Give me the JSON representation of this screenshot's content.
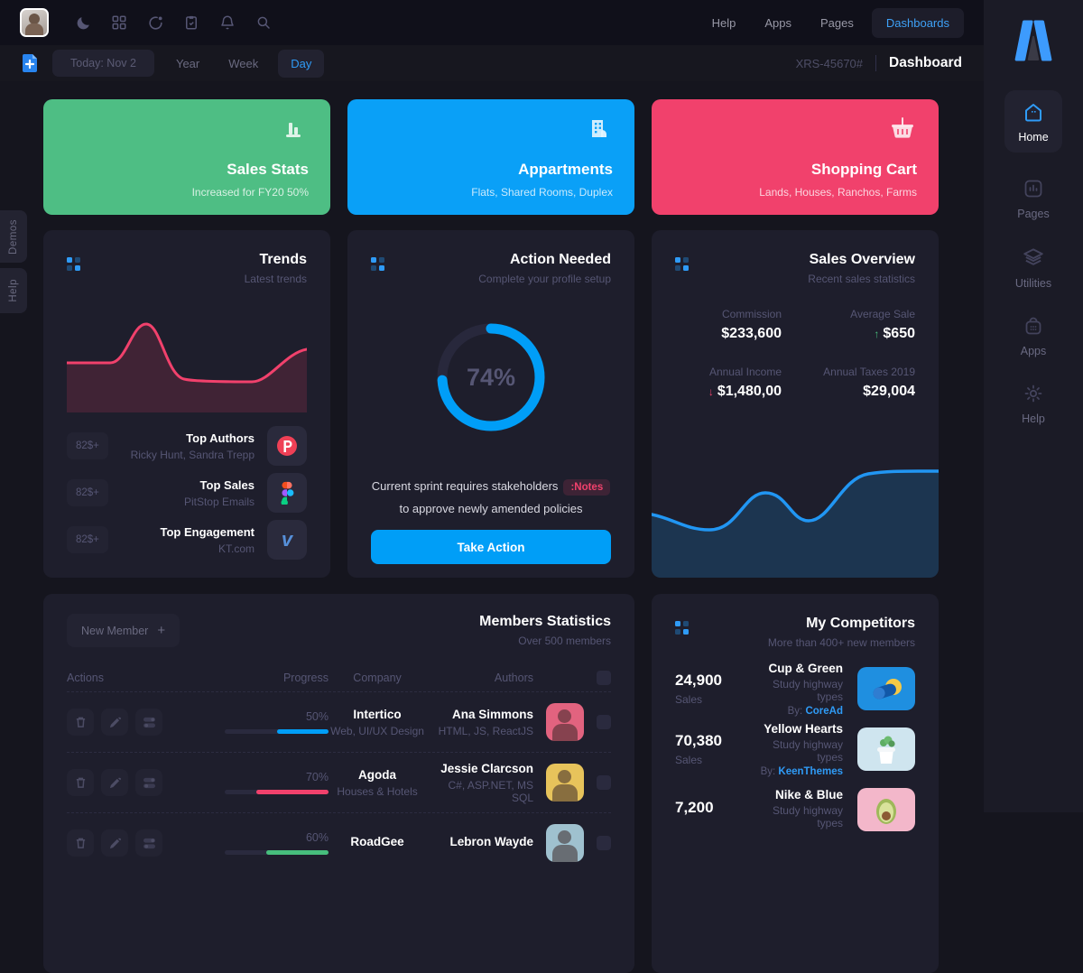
{
  "topbar": {
    "nav": {
      "help": "Help",
      "apps": "Apps",
      "pages": "Pages",
      "dashboards": "Dashboards"
    },
    "icons": [
      "moon-icon",
      "grid-icon",
      "donut-icon",
      "clipboard-icon",
      "bell-icon",
      "search-icon"
    ]
  },
  "toolbar": {
    "today": "Today: Nov 2",
    "year": "Year",
    "week": "Week",
    "day": "Day",
    "ref": "XRS-45670#",
    "title": "Dashboard"
  },
  "side_tabs": {
    "demos": "Demos",
    "help": "Help"
  },
  "stat_cards": [
    {
      "title": "Sales Stats",
      "subtitle": "Increased for FY20 50%",
      "color": "#4ebe84",
      "icon": "bar-chart-icon"
    },
    {
      "title": "Appartments",
      "subtitle": "Flats, Shared Rooms, Duplex",
      "color": "#0aa0f7",
      "icon": "building-icon"
    },
    {
      "title": "Shopping Cart",
      "subtitle": "Lands, Houses, Ranchos, Farms",
      "color": "#f1416c",
      "icon": "basket-icon"
    }
  ],
  "trends": {
    "title": "Trends",
    "subtitle": "Latest trends",
    "accent": "#f1416c",
    "items": [
      {
        "badge": "82$+",
        "title": "Top Authors",
        "subtitle": "Ricky Hunt, Sandra Trepp",
        "icon": "producthunt-icon"
      },
      {
        "badge": "82$+",
        "title": "Top Sales",
        "subtitle": "PitStop Emails",
        "icon": "figma-icon"
      },
      {
        "badge": "82$+",
        "title": "Top Engagement",
        "subtitle": "KT.com",
        "icon": "vimeo-icon"
      }
    ]
  },
  "action_needed": {
    "title": "Action Needed",
    "subtitle": "Complete your profile setup",
    "percent_label": "74%",
    "percent_value": 74,
    "note_line1": "Current sprint requires stakeholders",
    "note_badge": ":Notes",
    "note_line2": "to approve newly amended policies",
    "button": "Take Action",
    "accent": "#009ef7"
  },
  "sales_overview": {
    "title": "Sales Overview",
    "subtitle": "Recent sales statistics",
    "stats": [
      {
        "label": "Commission",
        "value": "$233,600",
        "trend": ""
      },
      {
        "label": "Average Sale",
        "value": "$650",
        "trend": "up"
      },
      {
        "label": "Annual Income",
        "value": "$1,480,00",
        "trend": "down"
      },
      {
        "label": "Annual Taxes 2019",
        "value": "$29,004",
        "trend": ""
      }
    ]
  },
  "members": {
    "title": "Members Statistics",
    "subtitle": "Over 500 members",
    "new_member": "New Member",
    "columns": {
      "actions": "Actions",
      "progress": "Progress",
      "company": "Company",
      "authors": "Authors"
    },
    "rows": [
      {
        "percent": "50%",
        "color": "#009ef7",
        "company": "Intertico",
        "company_sub": "Web, UI/UX Design",
        "author": "Ana Simmons",
        "author_sub": "HTML, JS, ReactJS",
        "avatar_color": "#e2637f"
      },
      {
        "percent": "70%",
        "color": "#f1416c",
        "company": "Agoda",
        "company_sub": "Houses & Hotels",
        "author": "Jessie Clarcson",
        "author_sub": "C#, ASP.NET, MS SQL",
        "avatar_color": "#e7c35b"
      },
      {
        "percent": "60%",
        "color": "#47be7d",
        "company": "RoadGee",
        "company_sub": "",
        "author": "Lebron Wayde",
        "author_sub": "",
        "avatar_color": "#9fc1cf"
      }
    ]
  },
  "competitors": {
    "title": "My Competitors",
    "subtitle": "More than 400+ new members",
    "rows": [
      {
        "value": "24,900",
        "unit": "Sales",
        "name": "Cup & Green",
        "desc": "Study highway types",
        "by_label": "By:",
        "by": "CoreAd",
        "thumb": "pill-blue"
      },
      {
        "value": "70,380",
        "unit": "Sales",
        "name": "Yellow Hearts",
        "desc": "Study highway types",
        "by_label": "By:",
        "by": "KeenThemes",
        "thumb": "plant-pot"
      },
      {
        "value": "7,200",
        "unit": "",
        "name": "Nike & Blue",
        "desc": "Study highway types",
        "by_label": "",
        "by": "",
        "thumb": "avocado"
      }
    ]
  },
  "sidebar": {
    "items": [
      {
        "label": "Home",
        "icon": "home-icon",
        "active": true
      },
      {
        "label": "Pages",
        "icon": "chart-square-icon",
        "active": false
      },
      {
        "label": "Utilities",
        "icon": "layers-icon",
        "active": false
      },
      {
        "label": "Apps",
        "icon": "bag-icon",
        "active": false
      },
      {
        "label": "Help",
        "icon": "gear-icon",
        "active": false
      }
    ]
  },
  "chart_data": [
    {
      "type": "area",
      "title": "Trends",
      "color": "#f1416c",
      "x": [
        0,
        20,
        33,
        50,
        63,
        78,
        100
      ],
      "values": [
        50,
        50,
        88,
        30,
        30,
        33,
        64
      ],
      "grid": false
    },
    {
      "type": "pie",
      "title": "Action Needed completion",
      "values": [
        74,
        26
      ],
      "labels": [
        "complete",
        "remaining"
      ],
      "center_label": "74%"
    },
    {
      "type": "area",
      "title": "Sales Overview",
      "color": "#009ef7",
      "x": [
        0,
        20,
        38,
        54,
        75,
        100
      ],
      "values": [
        42,
        32,
        56,
        38,
        68,
        70
      ],
      "grid": false
    }
  ]
}
